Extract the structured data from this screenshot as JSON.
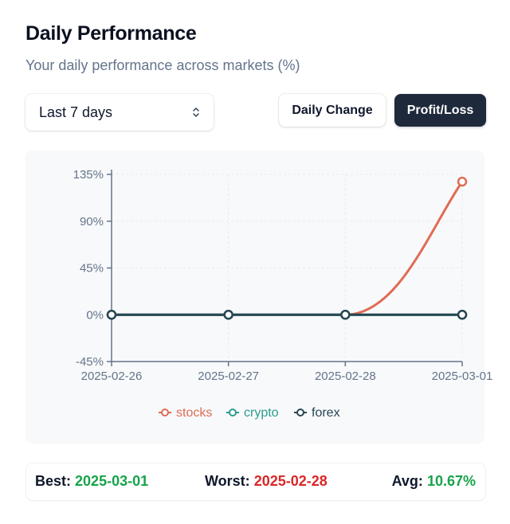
{
  "header": {
    "title": "Daily Performance",
    "subtitle": "Your daily performance across markets (%)"
  },
  "controls": {
    "range_select": {
      "value": "Last 7 days",
      "icon": "chevron-up-down-icon"
    },
    "daily_change_label": "Daily Change",
    "profit_loss_label": "Profit/Loss",
    "active": "Profit/Loss"
  },
  "colors": {
    "stocks": "#e06c55",
    "crypto": "#2a9d8f",
    "forex": "#264653",
    "best": "#16a34a",
    "worst": "#dc2626",
    "active_button": "#1e293b"
  },
  "chart_data": {
    "type": "line",
    "x": [
      "2025-02-26",
      "2025-02-27",
      "2025-02-28",
      "2025-03-01"
    ],
    "y_ticks": [
      "135%",
      "90%",
      "45%",
      "0%",
      "-45%"
    ],
    "y_tick_values": [
      135,
      90,
      45,
      0,
      -45
    ],
    "ylim": [
      -45,
      135
    ],
    "grid": true,
    "legend_position": "bottom",
    "series": [
      {
        "name": "stocks",
        "values": [
          0,
          0,
          0,
          128
        ],
        "color": "#e06c55"
      },
      {
        "name": "crypto",
        "values": [
          0,
          0,
          0,
          0
        ],
        "color": "#2a9d8f"
      },
      {
        "name": "forex",
        "values": [
          0,
          0,
          0,
          0
        ],
        "color": "#264653"
      }
    ]
  },
  "stats": {
    "best_label": "Best:",
    "best_value": "2025-03-01",
    "worst_label": "Worst:",
    "worst_value": "2025-02-28",
    "avg_label": "Avg:",
    "avg_value": "10.67%"
  }
}
